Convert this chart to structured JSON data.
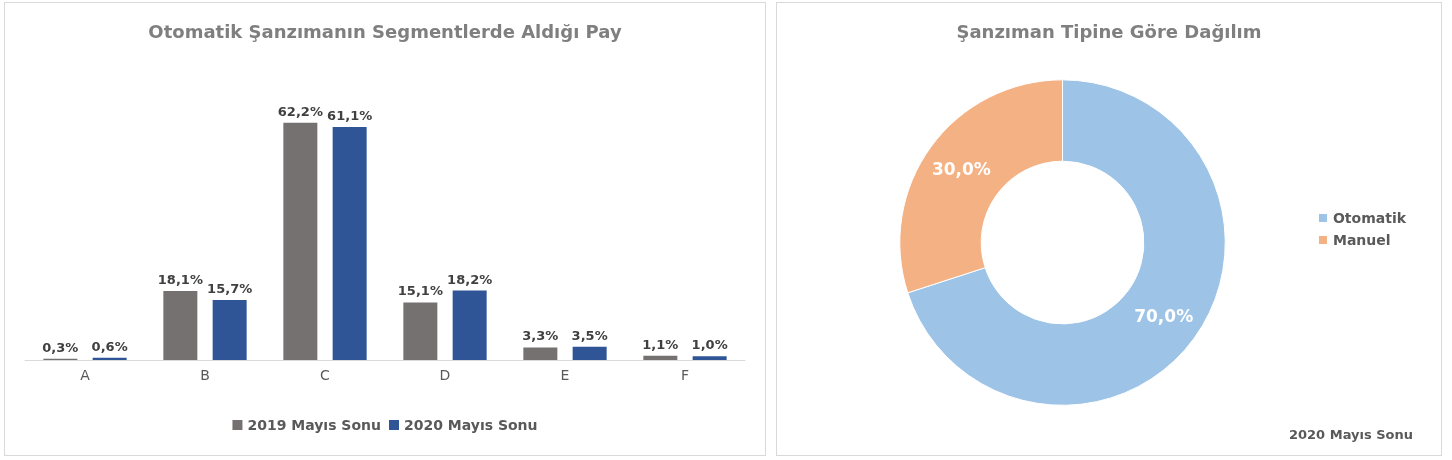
{
  "chart_data": [
    {
      "type": "bar",
      "title": "Otomatik Şanzımanın Segmentlerde Aldığı Pay",
      "categories": [
        "A",
        "B",
        "C",
        "D",
        "E",
        "F"
      ],
      "series": [
        {
          "name": "2019 Mayıs Sonu",
          "color": "#767171",
          "values": [
            0.3,
            18.1,
            62.2,
            15.1,
            3.3,
            1.1
          ],
          "value_labels": [
            "0,3%",
            "18,1%",
            "62,2%",
            "15,1%",
            "3,3%",
            "1,1%"
          ]
        },
        {
          "name": "2020 Mayıs Sonu",
          "color": "#2f5597",
          "values": [
            0.6,
            15.7,
            61.1,
            18.2,
            3.5,
            1.0
          ],
          "value_labels": [
            "0,6%",
            "15,7%",
            "61,1%",
            "18,2%",
            "3,5%",
            "1,0%"
          ]
        }
      ],
      "legend": "bottom"
    },
    {
      "type": "donut",
      "title": "Şanzıman Tipine Göre Dağılım",
      "categories": [
        "Otomatik",
        "Manuel"
      ],
      "values": [
        70.0,
        30.0
      ],
      "colors": [
        "#9dc3e6",
        "#f4b183"
      ],
      "value_labels": [
        "70,0%",
        "30,0%"
      ],
      "legend": "right",
      "annotations": [
        "2020 Mayıs Sonu"
      ]
    }
  ]
}
